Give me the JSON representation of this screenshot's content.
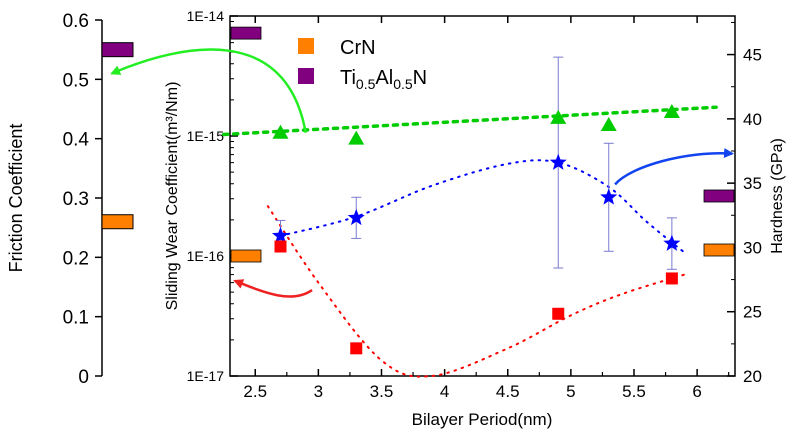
{
  "chart_data": {
    "type": "scatter",
    "panels": {
      "left": {
        "ylabel": "Friction Coefficient",
        "ylim": [
          0,
          0.6
        ],
        "ticks": [
          "0",
          "0.1",
          "0.2",
          "0.3",
          "0.4",
          "0.5",
          "0.6"
        ],
        "bars": [
          {
            "name": "Ti0.5Al0.5N",
            "value": 0.55,
            "color": "#800080"
          },
          {
            "name": "CrN",
            "value": 0.26,
            "color": "#ff8000"
          }
        ]
      },
      "main": {
        "xlabel": "Bilayer Period(nm)",
        "xlim": [
          2.3,
          6.3
        ],
        "xticks": [
          "2.5",
          "3",
          "3.5",
          "4",
          "4.5",
          "5",
          "5.5",
          "6"
        ],
        "ylabel_left": "Sliding Wear Coefficient(m³/Nm)",
        "ylim_left_log": [
          1e-17,
          1e-14
        ],
        "yticks_left": [
          "1E-17",
          "1E-16",
          "1E-15",
          "1E-14"
        ],
        "ylabel_right": "Hardness (GPa)",
        "ylim_right": [
          20,
          48
        ],
        "yticks_right": [
          "20",
          "25",
          "30",
          "35",
          "40",
          "45"
        ]
      }
    },
    "legend": [
      {
        "label": "CrN",
        "color": "#ff8000"
      },
      {
        "label": "Ti",
        "sub1": "0.5",
        "mid": "Al",
        "sub2": "0.5",
        "tail": "N",
        "color": "#800080"
      }
    ],
    "reference_markers": {
      "wear_left": [
        {
          "name": "Ti0.5Al0.5N",
          "value": 7.2e-15,
          "color": "#800080"
        },
        {
          "name": "CrN",
          "value": 1e-16,
          "color": "#ff8000"
        }
      ],
      "hardness_right": [
        {
          "name": "Ti0.5Al0.5N",
          "value": 34.0,
          "color": "#800080"
        },
        {
          "name": "CrN",
          "value": 29.8,
          "color": "#ff8000"
        }
      ]
    },
    "series": [
      {
        "name": "Friction coefficient",
        "marker": "triangle",
        "color": "#00cc00",
        "axis": "friction",
        "x": [
          2.7,
          3.3,
          4.9,
          5.3,
          5.8
        ],
        "y": [
          0.41,
          0.4,
          0.435,
          0.423,
          0.445
        ],
        "trend": [
          [
            2.25,
            0.407
          ],
          [
            6.15,
            0.453
          ]
        ]
      },
      {
        "name": "Hardness",
        "marker": "star",
        "color": "#0000ff",
        "axis": "hardness",
        "x": [
          2.7,
          3.3,
          4.9,
          5.3,
          5.8
        ],
        "y": [
          30.9,
          32.3,
          36.6,
          33.9,
          30.3
        ],
        "err": [
          1.2,
          1.6,
          8.2,
          4.2,
          2.0
        ],
        "trend": [
          [
            2.7,
            30.9
          ],
          [
            3.3,
            32.4
          ],
          [
            3.9,
            34.8
          ],
          [
            4.5,
            36.5
          ],
          [
            4.9,
            36.6
          ],
          [
            5.3,
            34.7
          ],
          [
            5.6,
            32.0
          ],
          [
            5.9,
            29.6
          ]
        ]
      },
      {
        "name": "Sliding wear coefficient",
        "marker": "square",
        "color": "#ff0000",
        "axis": "wear",
        "x": [
          2.7,
          3.3,
          4.9,
          5.8
        ],
        "y": [
          1.2e-16,
          1.7e-17,
          3.3e-17,
          6.5e-17
        ],
        "trend": [
          [
            2.6,
            2.6e-16
          ],
          [
            3.0,
            6e-17
          ],
          [
            3.5,
            1.35e-17
          ],
          [
            3.9,
            1e-17
          ],
          [
            4.5,
            1.7e-17
          ],
          [
            5.0,
            3.2e-17
          ],
          [
            5.4,
            4.8e-17
          ],
          [
            5.9,
            7e-17
          ]
        ]
      }
    ],
    "arrows": [
      {
        "name": "friction-arrow",
        "color": "#22ee22",
        "axis": "friction",
        "from": [
          2.9,
          0.41
        ],
        "to": "left"
      },
      {
        "name": "hardness-arrow",
        "color": "#1144ee",
        "axis": "hardness",
        "from": [
          5.35,
          34.9
        ],
        "to": "right"
      },
      {
        "name": "wear-arrow",
        "color": "#ee2222",
        "axis": "wear",
        "from": [
          2.95,
          5.2e-17
        ],
        "to": "left"
      }
    ]
  }
}
